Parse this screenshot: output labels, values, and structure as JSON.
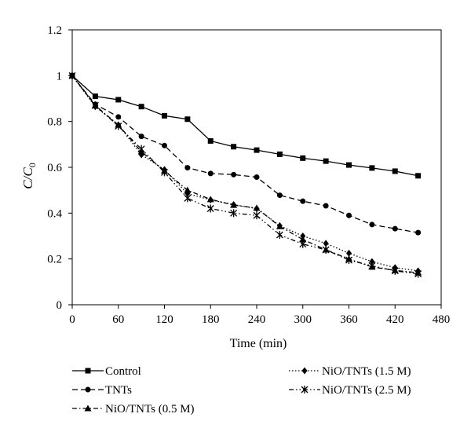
{
  "chart_data": {
    "type": "line",
    "title": "",
    "xlabel": "Time (min)",
    "ylabel": {
      "main": "C/C",
      "sub": "0"
    },
    "xlim": [
      0,
      480
    ],
    "ylim": [
      0,
      1.2
    ],
    "xticks": [
      0,
      60,
      120,
      180,
      240,
      300,
      360,
      420,
      480
    ],
    "yticks": [
      0,
      0.2,
      0.4,
      0.6,
      0.8,
      1,
      1.2
    ],
    "xtick_labels": [
      "0",
      "60",
      "120",
      "180",
      "240",
      "300",
      "360",
      "420",
      "480"
    ],
    "ytick_labels": [
      "0",
      "0.2",
      "0.4",
      "0.6",
      "0.8",
      "1",
      "1.2"
    ],
    "grid": false,
    "legend_position": "bottom",
    "x": [
      0,
      30,
      60,
      90,
      120,
      150,
      180,
      210,
      240,
      270,
      300,
      330,
      360,
      390,
      420,
      450
    ],
    "series": [
      {
        "name": "Control",
        "marker": "square",
        "dash": "solid",
        "values": [
          1.0,
          0.91,
          0.895,
          0.865,
          0.825,
          0.81,
          0.715,
          0.69,
          0.675,
          0.657,
          0.64,
          0.627,
          0.61,
          0.597,
          0.583,
          0.563
        ]
      },
      {
        "name": "TNTs",
        "marker": "circle",
        "dash": "dashed",
        "values": [
          1.0,
          0.875,
          0.82,
          0.735,
          0.695,
          0.598,
          0.573,
          0.568,
          0.557,
          0.478,
          0.452,
          0.432,
          0.39,
          0.35,
          0.332,
          0.315
        ]
      },
      {
        "name": "NiO/TNTs (0.5 M)",
        "marker": "triangle",
        "dash": "dashdot",
        "values": [
          1.0,
          0.87,
          0.785,
          0.668,
          0.585,
          0.5,
          0.46,
          0.435,
          0.422,
          0.342,
          0.285,
          0.24,
          0.2,
          0.165,
          0.15,
          0.14
        ]
      },
      {
        "name": "NiO/TNTs (1.5 M)",
        "marker": "diamond",
        "dash": "dotted",
        "values": [
          1.0,
          0.865,
          0.785,
          0.655,
          0.59,
          0.485,
          0.458,
          0.437,
          0.42,
          0.345,
          0.3,
          0.268,
          0.225,
          0.188,
          0.162,
          0.148
        ]
      },
      {
        "name": "NiO/TNTs (2.5 M)",
        "marker": "asterisk",
        "dash": "dashdotdot",
        "values": [
          1.0,
          0.87,
          0.78,
          0.68,
          0.578,
          0.465,
          0.42,
          0.4,
          0.39,
          0.305,
          0.265,
          0.24,
          0.195,
          0.17,
          0.148,
          0.135
        ]
      }
    ]
  }
}
